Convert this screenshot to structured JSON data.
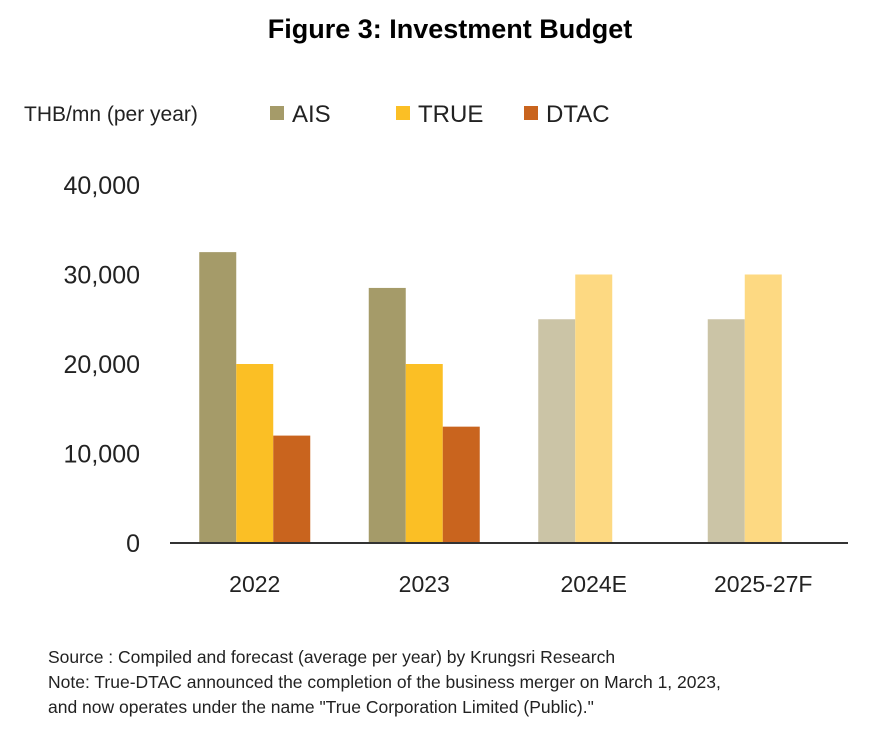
{
  "title": "Figure 3: Investment Budget",
  "chart_data": {
    "type": "bar",
    "ylabel": "THB/mn (per year)",
    "categories": [
      "2022",
      "2023",
      "2024E",
      "2025-27F"
    ],
    "series": [
      {
        "name": "AIS",
        "color": "#a59b69",
        "forecast_color": "#cbc4a6",
        "values": [
          32500,
          28500,
          25000,
          25000
        ]
      },
      {
        "name": "TRUE",
        "color": "#fbbf25",
        "forecast_color": "#fdd982",
        "values": [
          20000,
          20000,
          30000,
          30000
        ]
      },
      {
        "name": "DTAC",
        "color": "#c9641e",
        "forecast_color": "#c9641e",
        "values": [
          12000,
          13000,
          null,
          null
        ]
      }
    ],
    "forecast_categories": [
      "2024E",
      "2025-27F"
    ],
    "yticks": [
      "0",
      "10,000",
      "20,000",
      "30,000",
      "40,000"
    ],
    "ylim": [
      0,
      40000
    ],
    "grid": false,
    "legend": "top"
  },
  "source": "Source :  Compiled and forecast (average per year) by Krungsri Research",
  "note_line1": "Note: True-DTAC announced the completion of the business merger on March 1, 2023,",
  "note_line2": "and now operates under the name \"True Corporation Limited (Public).\""
}
